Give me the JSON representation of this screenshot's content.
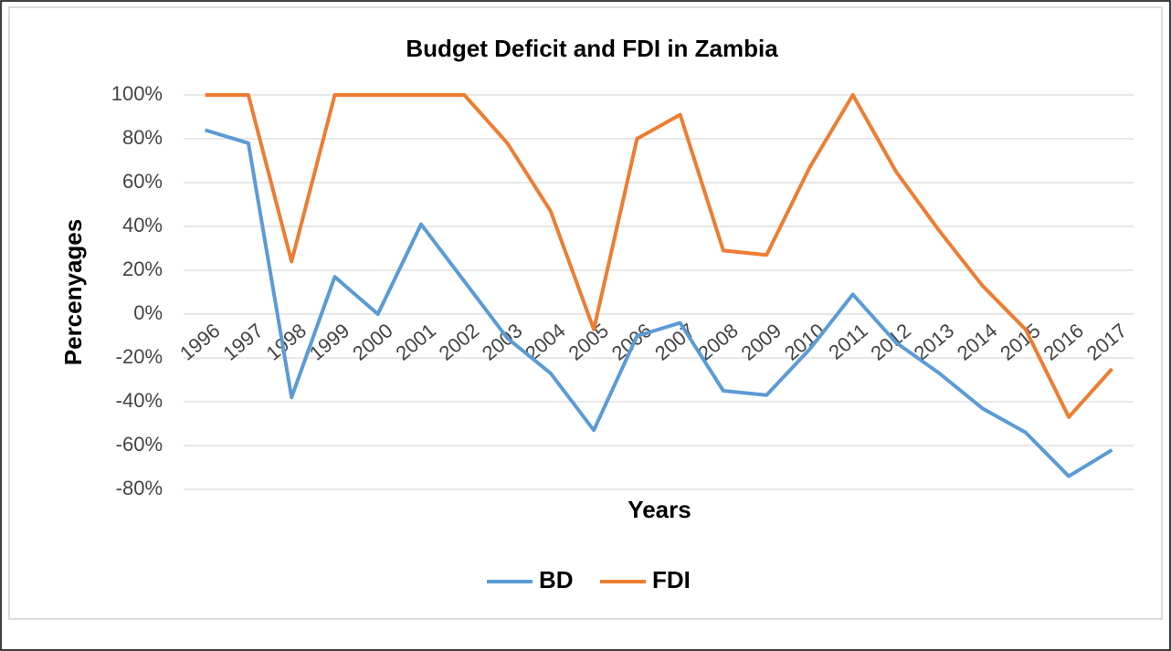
{
  "chart_data": {
    "type": "line",
    "title": "Budget Deficit and FDI in Zambia",
    "x_label": "Years",
    "y_label": "Percenyages",
    "categories": [
      "1996",
      "1997",
      "1998",
      "1999",
      "2000",
      "2001",
      "2002",
      "2003",
      "2004",
      "2005",
      "2006",
      "2007",
      "2008",
      "2009",
      "2010",
      "2011",
      "2012",
      "2013",
      "2014",
      "2015",
      "2016",
      "2017"
    ],
    "series": [
      {
        "name": "BD",
        "color": "#5b9bd5",
        "values": [
          84,
          78,
          -38,
          17,
          0,
          41,
          15,
          -11,
          -27,
          -53,
          -10,
          -4,
          -35,
          -37,
          -16,
          9,
          -13,
          -27,
          -43,
          -54,
          -74,
          -62
        ]
      },
      {
        "name": "FDI",
        "color": "#ed7d31",
        "values": [
          100,
          100,
          24,
          100,
          100,
          100,
          100,
          78,
          47,
          -7,
          80,
          91,
          29,
          27,
          67,
          100,
          65,
          38,
          13,
          -7,
          -47,
          -25
        ]
      }
    ],
    "ylim": [
      -80,
      100
    ],
    "yticks": [
      {
        "value": -80,
        "label": "-80%"
      },
      {
        "value": -60,
        "label": "-60%"
      },
      {
        "value": -40,
        "label": "-40%"
      },
      {
        "value": -20,
        "label": "-20%"
      },
      {
        "value": 0,
        "label": "0%"
      },
      {
        "value": 20,
        "label": "20%"
      },
      {
        "value": 40,
        "label": "40%"
      },
      {
        "value": 60,
        "label": "60%"
      },
      {
        "value": 80,
        "label": "80%"
      },
      {
        "value": 100,
        "label": "100%"
      }
    ],
    "grid": true,
    "legend": "bottom"
  }
}
